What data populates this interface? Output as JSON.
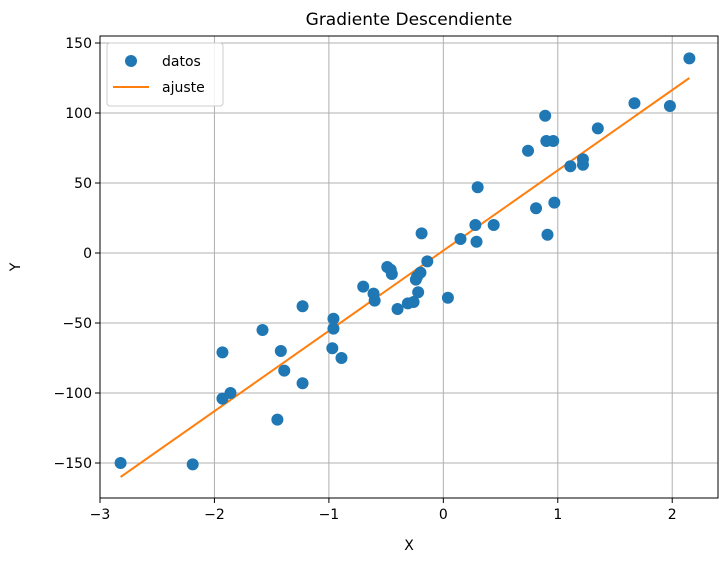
{
  "chart_data": {
    "type": "scatter",
    "title": "Gradiente Descendiente",
    "xlabel": "X",
    "ylabel": "Y",
    "xlim": [
      -3.0,
      2.4
    ],
    "ylim": [
      -175,
      155
    ],
    "xticks": [
      -3,
      -2,
      -1,
      0,
      1,
      2
    ],
    "yticks": [
      -150,
      -100,
      -50,
      0,
      50,
      100,
      150
    ],
    "xtick_labels": [
      "−3",
      "−2",
      "−1",
      "0",
      "1",
      "2"
    ],
    "ytick_labels": [
      "−150",
      "−100",
      "−50",
      "0",
      "50",
      "100",
      "150"
    ],
    "grid": true,
    "legend_position": "top-left",
    "series": [
      {
        "name": "datos",
        "kind": "scatter",
        "color": "#1f77b4",
        "points": [
          [
            -2.82,
            -150
          ],
          [
            -2.19,
            -151
          ],
          [
            -1.93,
            -71
          ],
          [
            -1.93,
            -104
          ],
          [
            -1.86,
            -100
          ],
          [
            -1.58,
            -55
          ],
          [
            -1.45,
            -119
          ],
          [
            -1.42,
            -70
          ],
          [
            -1.39,
            -84
          ],
          [
            -1.23,
            -93
          ],
          [
            -1.23,
            -38
          ],
          [
            -0.97,
            -68
          ],
          [
            -0.96,
            -47
          ],
          [
            -0.96,
            -54
          ],
          [
            -0.89,
            -75
          ],
          [
            -0.7,
            -24
          ],
          [
            -0.61,
            -29
          ],
          [
            -0.6,
            -34
          ],
          [
            -0.49,
            -10
          ],
          [
            -0.46,
            -12
          ],
          [
            -0.45,
            -15
          ],
          [
            -0.4,
            -40
          ],
          [
            -0.31,
            -36
          ],
          [
            -0.26,
            -35
          ],
          [
            -0.23,
            -17
          ],
          [
            -0.24,
            -19
          ],
          [
            -0.22,
            -28
          ],
          [
            -0.2,
            -14
          ],
          [
            -0.19,
            14
          ],
          [
            -0.14,
            -6
          ],
          [
            0.04,
            -32
          ],
          [
            0.15,
            10
          ],
          [
            0.28,
            20
          ],
          [
            0.29,
            8
          ],
          [
            0.3,
            47
          ],
          [
            0.44,
            20
          ],
          [
            0.74,
            73
          ],
          [
            0.81,
            32
          ],
          [
            0.89,
            98
          ],
          [
            0.9,
            80
          ],
          [
            0.91,
            13
          ],
          [
            0.96,
            80
          ],
          [
            0.97,
            36
          ],
          [
            1.11,
            62
          ],
          [
            1.22,
            67
          ],
          [
            1.22,
            63
          ],
          [
            1.35,
            89
          ],
          [
            1.67,
            107
          ],
          [
            1.98,
            105
          ],
          [
            2.15,
            139
          ]
        ]
      },
      {
        "name": "ajuste",
        "kind": "line",
        "color": "#ff7f0e",
        "points": [
          [
            -2.82,
            -160
          ],
          [
            2.15,
            125
          ]
        ]
      }
    ]
  }
}
